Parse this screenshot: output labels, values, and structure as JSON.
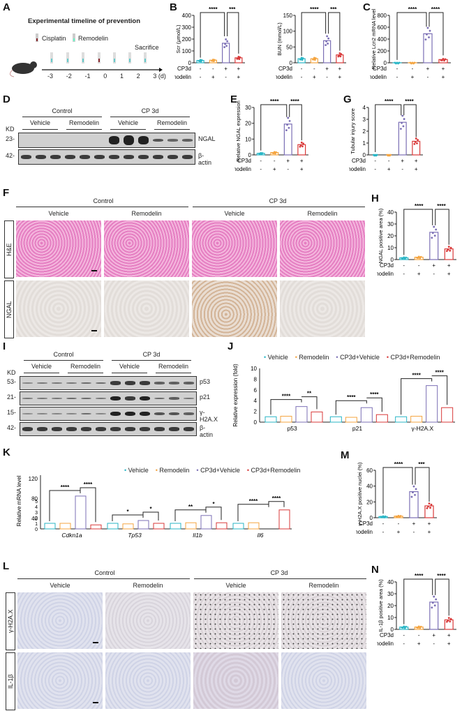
{
  "panels": {
    "A": {
      "letter": "A",
      "title": "Experimental timeline of prevention",
      "legend": [
        "Cisplatin",
        "Remodelin"
      ],
      "sacrifice": "Sacrifice",
      "days": [
        "-3",
        "-2",
        "-1",
        "0",
        "1",
        "2",
        "3 (d)"
      ]
    },
    "B": {
      "letter": "B"
    },
    "C": {
      "letter": "C"
    },
    "D": {
      "letter": "D",
      "groups": [
        "Control",
        "CP 3d"
      ],
      "subgroups": [
        "Vehicle",
        "Remodelin",
        "Vehicle",
        "Remodelin"
      ],
      "kd_label": "KD",
      "rows": [
        {
          "kd": "23-",
          "name": "NGAL"
        },
        {
          "kd": "42-",
          "name": "β-actin"
        }
      ]
    },
    "E": {
      "letter": "E"
    },
    "G": {
      "letter": "G"
    },
    "F": {
      "letter": "F",
      "groups": [
        "Control",
        "CP 3d"
      ],
      "subgroups": [
        "Vehicle",
        "Remodelin",
        "Vehicle",
        "Remodelin"
      ],
      "rows": [
        "H&E",
        "NGAL"
      ]
    },
    "H": {
      "letter": "H"
    },
    "I": {
      "letter": "I",
      "groups": [
        "Control",
        "CP 3d"
      ],
      "subgroups": [
        "Vehicle",
        "Remodelin",
        "Vehicle",
        "Remodelin"
      ],
      "kd_label": "KD",
      "rows": [
        {
          "kd": "53-",
          "name": "p53"
        },
        {
          "kd": "21-",
          "name": "p21"
        },
        {
          "kd": "15-",
          "name": "γ-H2A.X"
        },
        {
          "kd": "42-",
          "name": "β-actin"
        }
      ]
    },
    "J": {
      "letter": "J"
    },
    "K": {
      "letter": "K"
    },
    "M": {
      "letter": "M"
    },
    "L": {
      "letter": "L",
      "groups": [
        "Control",
        "CP 3d"
      ],
      "subgroups": [
        "Vehicle",
        "Remodelin",
        "Vehicle",
        "Remodelin"
      ],
      "rows": [
        "γ-H2A.X",
        "IL-1β"
      ]
    },
    "N": {
      "letter": "N"
    }
  },
  "condition_table": {
    "row1_label": "CP3d",
    "row2_label": "Remodelin",
    "row1": [
      "-",
      "-",
      "+",
      "+"
    ],
    "row2": [
      "-",
      "+",
      "-",
      "+"
    ]
  },
  "legend_groups": [
    "Vehicle",
    "Remodelin",
    "CP3d+Vehicle",
    "CP3d+Remodelin"
  ],
  "colors": {
    "vehicle": "#29b6c6",
    "remodelin": "#f5a540",
    "cp3d_vehicle": "#7b6fb5",
    "cp3d_remodelin": "#d93a3a",
    "he_stain": "#e27fbf",
    "ihc_bg": "#e3dedb",
    "ihc_blue": "#cfd2e4"
  },
  "chart_data": [
    {
      "id": "B1",
      "type": "bar",
      "categories": [
        "Vehicle",
        "Remodelin",
        "CP3d+Vehicle",
        "CP3d+Remodelin"
      ],
      "values": [
        20,
        22,
        165,
        42
      ],
      "ylabel": "Scr (μmol/L)",
      "ylim": [
        0,
        400
      ],
      "yticks": [
        0,
        100,
        200,
        300,
        400
      ],
      "sig": [
        "****",
        "***"
      ]
    },
    {
      "id": "B2",
      "type": "bar",
      "categories": [
        "Vehicle",
        "Remodelin",
        "CP3d+Vehicle",
        "CP3d+Remodelin"
      ],
      "values": [
        13,
        13,
        70,
        25
      ],
      "ylabel": "BUN (mmol/L)",
      "ylim": [
        0,
        150
      ],
      "yticks": [
        0,
        50,
        100,
        150
      ],
      "sig": [
        "****",
        "***"
      ]
    },
    {
      "id": "C",
      "type": "bar",
      "categories": [
        "Vehicle",
        "Remodelin",
        "CP3d+Vehicle",
        "CP3d+Remodelin"
      ],
      "values": [
        1,
        1,
        490,
        55
      ],
      "ylabel": "Relative Lcn2 mRNA level",
      "ylim": [
        0,
        800
      ],
      "yticks": [
        0,
        200,
        400,
        600,
        800
      ],
      "sig": [
        "****",
        "****"
      ]
    },
    {
      "id": "E",
      "type": "bar",
      "categories": [
        "Vehicle",
        "Remodelin",
        "CP3d+Vehicle",
        "CP3d+Remodelin"
      ],
      "values": [
        1,
        1.5,
        19.5,
        6.5
      ],
      "ylabel": "Relative NGAL expression",
      "ylim": [
        0,
        30
      ],
      "yticks": [
        0,
        10,
        20,
        30
      ],
      "sig": [
        "****",
        "****"
      ]
    },
    {
      "id": "G",
      "type": "bar",
      "categories": [
        "Vehicle",
        "Remodelin",
        "CP3d+Vehicle",
        "CP3d+Remodelin"
      ],
      "values": [
        0,
        0,
        2.75,
        1.15
      ],
      "ylabel": "Tubular injury score",
      "ylim": [
        0,
        4
      ],
      "yticks": [
        0,
        1,
        2,
        3,
        4
      ],
      "sig": [
        "****",
        "****"
      ]
    },
    {
      "id": "H",
      "type": "bar",
      "categories": [
        "Vehicle",
        "Remodelin",
        "CP3d+Vehicle",
        "CP3d+Remodelin"
      ],
      "values": [
        1.5,
        2,
        23,
        9
      ],
      "ylabel": "NGAL positive area (%)",
      "ylim": [
        0,
        40
      ],
      "yticks": [
        0,
        10,
        20,
        30,
        40
      ],
      "sig": [
        "****",
        "****"
      ]
    },
    {
      "id": "J",
      "type": "bar",
      "categories": [
        "p53",
        "p21",
        "γ-H2A.X"
      ],
      "series": [
        {
          "name": "Vehicle",
          "values": [
            1,
            1,
            1
          ]
        },
        {
          "name": "Remodelin",
          "values": [
            1.1,
            0.9,
            1.1
          ]
        },
        {
          "name": "CP3d+Vehicle",
          "values": [
            2.9,
            2.7,
            6.8
          ]
        },
        {
          "name": "CP3d+Remodelin",
          "values": [
            1.9,
            1.4,
            2.7
          ]
        }
      ],
      "ylabel": "Relative expression (fold)",
      "ylim": [
        0,
        10
      ],
      "yticks": [
        0,
        2,
        4,
        6,
        8,
        10
      ],
      "sig": [
        [
          "****",
          "**"
        ],
        [
          "****",
          "****"
        ],
        [
          "****",
          "****"
        ]
      ]
    },
    {
      "id": "K",
      "type": "bar",
      "categories": [
        "Cdkn1a",
        "Tp53",
        "Il1b",
        "Il6"
      ],
      "series": [
        {
          "name": "Vehicle",
          "values": [
            1,
            1,
            1,
            1
          ]
        },
        {
          "name": "Remodelin",
          "values": [
            1,
            0.9,
            1.1,
            1.1
          ]
        },
        {
          "name": "CP3d+Vehicle",
          "values": [
            85,
            1.5,
            2.4,
            6.3
          ]
        },
        {
          "name": "CP3d+Remodelin",
          "values": [
            27,
            1.0,
            1.1,
            3.4
          ]
        }
      ],
      "ylabel": "Relative mRNA level",
      "yticks_lower": [
        0,
        1,
        2,
        3,
        4,
        5
      ],
      "yticks_upper": [
        40,
        80,
        120
      ],
      "sig": [
        [
          "****",
          "****"
        ],
        [
          "*",
          "*"
        ],
        [
          "**",
          "*"
        ],
        [
          "****",
          "****"
        ]
      ]
    },
    {
      "id": "M",
      "type": "bar",
      "categories": [
        "Vehicle",
        "Remodelin",
        "CP3d+Vehicle",
        "CP3d+Remodelin"
      ],
      "values": [
        1.5,
        2,
        33,
        15
      ],
      "ylabel": "γ-H2A.X positive nuclei (%)",
      "ylim": [
        0,
        60
      ],
      "yticks": [
        0,
        20,
        40,
        60
      ],
      "sig": [
        "****",
        "***"
      ]
    },
    {
      "id": "N",
      "type": "bar",
      "categories": [
        "Vehicle",
        "Remodelin",
        "CP3d+Vehicle",
        "CP3d+Remodelin"
      ],
      "values": [
        2,
        2,
        23,
        8
      ],
      "ylabel": "IL-1β positive area (%)",
      "ylim": [
        0,
        40
      ],
      "yticks": [
        0,
        10,
        20,
        30,
        40
      ],
      "sig": [
        "****",
        "****"
      ]
    }
  ]
}
